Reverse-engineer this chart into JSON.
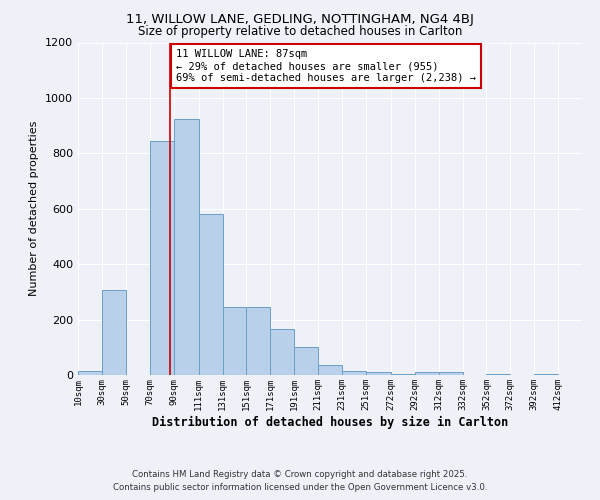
{
  "title1": "11, WILLOW LANE, GEDLING, NOTTINGHAM, NG4 4BJ",
  "title2": "Size of property relative to detached houses in Carlton",
  "xlabel": "Distribution of detached houses by size in Carlton",
  "ylabel": "Number of detached properties",
  "bin_labels": [
    "10sqm",
    "30sqm",
    "50sqm",
    "70sqm",
    "90sqm",
    "111sqm",
    "131sqm",
    "151sqm",
    "171sqm",
    "191sqm",
    "211sqm",
    "231sqm",
    "251sqm",
    "272sqm",
    "292sqm",
    "312sqm",
    "332sqm",
    "352sqm",
    "372sqm",
    "392sqm",
    "412sqm"
  ],
  "bin_edges": [
    10,
    30,
    50,
    70,
    90,
    111,
    131,
    151,
    171,
    191,
    211,
    231,
    251,
    272,
    292,
    312,
    332,
    352,
    372,
    392,
    412,
    432
  ],
  "bar_heights": [
    15,
    305,
    0,
    845,
    925,
    580,
    245,
    245,
    165,
    100,
    35,
    15,
    10,
    5,
    10,
    10,
    0,
    5,
    0,
    5,
    0
  ],
  "bar_color": "#b8d0ea",
  "bar_edge_color": "#6a9fc8",
  "property_size": 87,
  "red_line_x": 87,
  "annotation_title": "11 WILLOW LANE: 87sqm",
  "annotation_line2": "← 29% of detached houses are smaller (955)",
  "annotation_line3": "69% of semi-detached houses are larger (2,238) →",
  "annotation_box_color": "#ffffff",
  "annotation_border_color": "#cc0000",
  "red_line_color": "#cc0000",
  "ylim": [
    0,
    1200
  ],
  "yticks": [
    0,
    200,
    400,
    600,
    800,
    1000,
    1200
  ],
  "footnote1": "Contains HM Land Registry data © Crown copyright and database right 2025.",
  "footnote2": "Contains public sector information licensed under the Open Government Licence v3.0.",
  "bg_color": "#eef2f8"
}
